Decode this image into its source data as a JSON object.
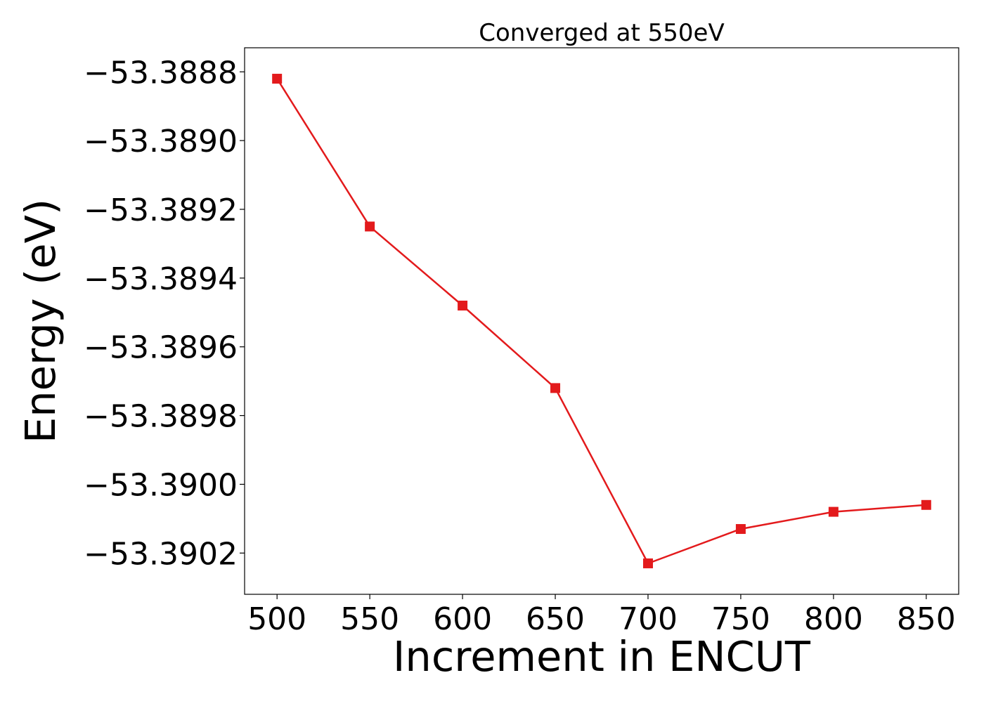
{
  "chart_data": {
    "type": "line",
    "title": "Converged at 550eV",
    "xlabel": "Increment in ENCUT",
    "ylabel": "Energy (eV)",
    "xlim": [
      482.5,
      867.5
    ],
    "ylim": [
      -53.39032,
      -53.38873
    ],
    "xticks": [
      500,
      550,
      600,
      650,
      700,
      750,
      800,
      850
    ],
    "xtick_labels": [
      "500",
      "550",
      "600",
      "650",
      "700",
      "750",
      "800",
      "850"
    ],
    "yticks": [
      -53.3888,
      -53.389,
      -53.3892,
      -53.3894,
      -53.3896,
      -53.3898,
      -53.39,
      -53.3902
    ],
    "ytick_labels": [
      "−53.3888",
      "−53.3890",
      "−53.3892",
      "−53.3894",
      "−53.3896",
      "−53.3898",
      "−53.3900",
      "−53.3902"
    ],
    "grid": false,
    "legend": "none",
    "series": [
      {
        "color": "#e31a1c",
        "marker": "square",
        "x": [
          500,
          550,
          600,
          650,
          700,
          750,
          800,
          850
        ],
        "y": [
          -53.38882,
          -53.38925,
          -53.38948,
          -53.38972,
          -53.39023,
          -53.39013,
          -53.39008,
          -53.39006
        ]
      }
    ]
  }
}
